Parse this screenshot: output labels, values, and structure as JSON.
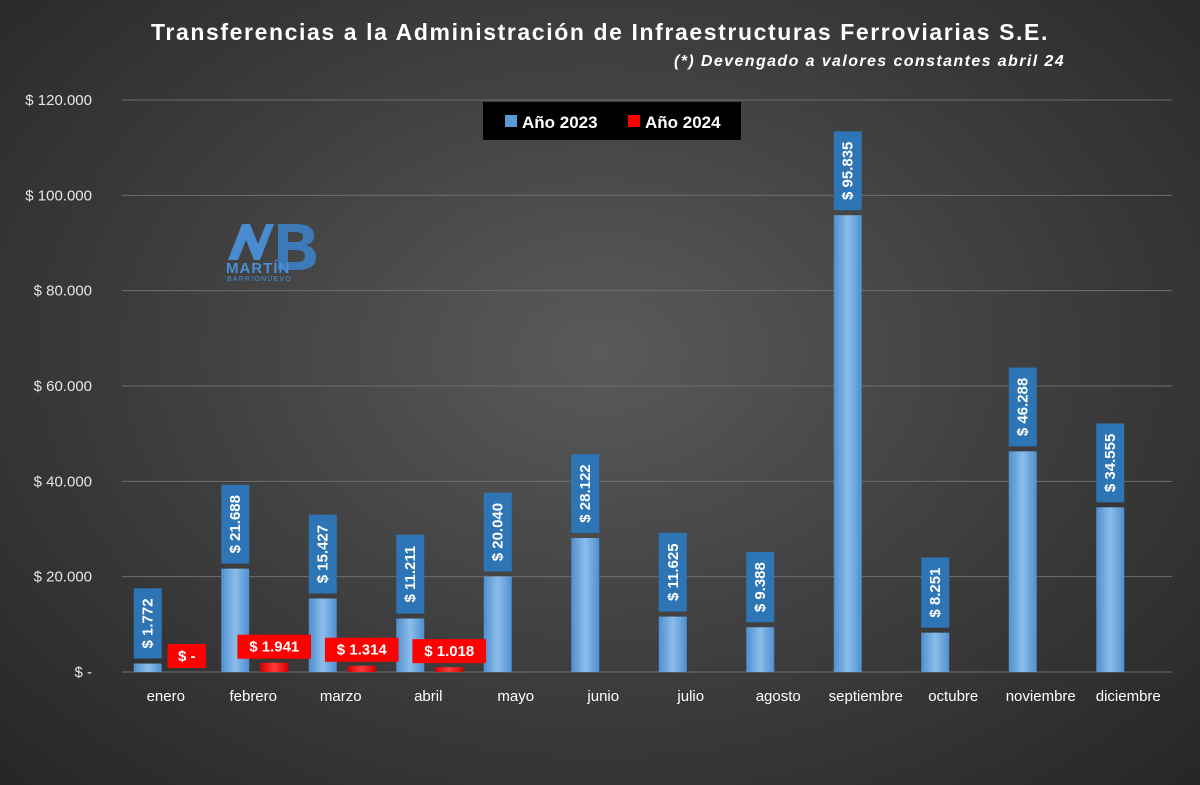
{
  "chart_data": {
    "type": "bar",
    "title": "Transferencias a la Administración de Infraestructuras Ferroviarias S.E.",
    "subtitle": "(*) Devengado a valores constantes abril 24",
    "categories": [
      "enero",
      "febrero",
      "marzo",
      "abril",
      "mayo",
      "junio",
      "julio",
      "agosto",
      "septiembre",
      "octubre",
      "noviembre",
      "diciembre"
    ],
    "series": [
      {
        "name": "Año 2023",
        "color": "#5b9bd5",
        "values": [
          1772,
          21688,
          15427,
          11211,
          20040,
          28122,
          11625,
          9388,
          95835,
          8251,
          46288,
          34555
        ],
        "labels": [
          "$ 1.772",
          "$ 21.688",
          "$ 15.427",
          "$ 11.211",
          "$ 20.040",
          "$ 28.122",
          "$ 11.625",
          "$ 9.388",
          "$ 95.835",
          "$ 8.251",
          "$ 46.288",
          "$ 34.555"
        ]
      },
      {
        "name": "Año 2024",
        "color": "#ff0000",
        "values": [
          0,
          1941,
          1314,
          1018,
          null,
          null,
          null,
          null,
          null,
          null,
          null,
          null
        ],
        "labels": [
          "$ -",
          "$ 1.941",
          "$ 1.314",
          "$ 1.018",
          null,
          null,
          null,
          null,
          null,
          null,
          null,
          null
        ]
      }
    ],
    "ylim": [
      0,
      120000
    ],
    "yticks": [
      0,
      20000,
      40000,
      60000,
      80000,
      100000,
      120000
    ],
    "ytick_labels": [
      "$ -",
      "$ 20.000",
      "$ 40.000",
      "$ 60.000",
      "$ 80.000",
      "$ 100.000",
      "$ 120.000"
    ],
    "xlabel": "",
    "ylabel": "",
    "grid": true,
    "legend_position": "top-center"
  },
  "watermark": {
    "name": "MARTÍN",
    "sub": "BARRIONUEVO",
    "color": "#4a8fd6"
  }
}
